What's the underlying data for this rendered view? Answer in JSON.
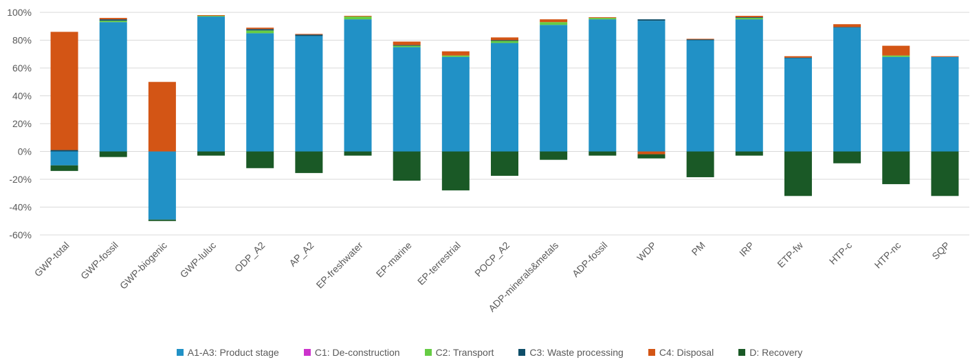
{
  "chart_data": {
    "type": "bar",
    "stacked": true,
    "categories": [
      "GWP-total",
      "GWP-fossil",
      "GWP-biogenic",
      "GWP-luluc",
      "ODP_A2",
      "AP_A2",
      "EP-freshwater",
      "EP-marine",
      "EP-terrestrial",
      "POCP_A2",
      "ADP-minerals&metals",
      "ADP-fossil",
      "WDP",
      "PM",
      "IRP",
      "ETP-fw",
      "HTP-c",
      "HTP-nc",
      "SQP"
    ],
    "series": [
      {
        "name": "A1-A3: Product stage",
        "color": "#2191C6",
        "values": [
          -10,
          93,
          -49,
          97,
          85,
          83,
          95,
          75,
          68,
          78,
          91,
          95,
          94,
          80,
          95,
          67,
          89,
          68,
          68
        ]
      },
      {
        "name": "C1: De-construction",
        "color": "#CC33CC",
        "values": [
          0,
          0,
          0,
          0,
          0,
          0,
          0,
          0,
          0,
          0,
          0,
          0,
          0,
          0,
          0,
          0,
          0,
          0,
          0
        ]
      },
      {
        "name": "C2: Transport",
        "color": "#66CC44",
        "values": [
          0,
          1,
          0,
          0.5,
          2,
          0,
          2,
          1,
          1,
          1.5,
          2,
          1,
          0,
          0,
          1,
          0,
          0,
          1,
          0
        ]
      },
      {
        "name": "C3: Waste processing",
        "color": "#0E4E69",
        "values": [
          1,
          1,
          0,
          0,
          1,
          1,
          0,
          0.5,
          0,
          0.5,
          0,
          0,
          1,
          0.5,
          0.5,
          0.5,
          0.5,
          0,
          0
        ]
      },
      {
        "name": "C4: Disposal",
        "color": "#D35515",
        "values": [
          85,
          1,
          50,
          0.5,
          1,
          0.5,
          0.5,
          2.5,
          3,
          2,
          2,
          0.5,
          -2,
          0.5,
          1,
          1,
          2,
          7,
          0.5
        ]
      },
      {
        "name": "D: Recovery",
        "color": "#1A5926",
        "values": [
          -4,
          -4,
          -1,
          -3,
          -12,
          -15.5,
          -3,
          -21,
          -28,
          -17.5,
          -6,
          -3,
          -3,
          -18.5,
          -3,
          -32,
          -8.5,
          -23.5,
          -32
        ]
      }
    ],
    "yaxis": {
      "min": -60,
      "max": 100,
      "tick_values": [
        -60,
        -40,
        -20,
        0,
        20,
        40,
        60,
        80,
        100
      ],
      "tick_labels": [
        "-60%",
        "-40%",
        "-20%",
        "0%",
        "20%",
        "40%",
        "60%",
        "80%",
        "100%"
      ]
    },
    "grid": true,
    "legend_position": "bottom",
    "title": "",
    "xlabel": "",
    "ylabel": ""
  }
}
